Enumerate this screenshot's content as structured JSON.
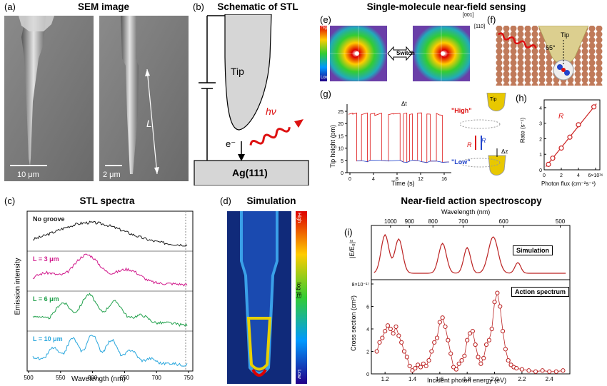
{
  "panels": {
    "a": {
      "letter": "(a)",
      "title": "SEM image",
      "scale1": "10 μm",
      "scale2": "2 μm",
      "length_label": "L"
    },
    "b": {
      "letter": "(b)",
      "title": "Schematic of STL",
      "tip": "Tip",
      "hv": "hν",
      "electron": "e⁻",
      "substrate": "Ag(111)"
    },
    "c": {
      "letter": "(c)",
      "title": "STL spectra",
      "ylabel": "Emission intensity",
      "xlabel": "Wavelength (nm)",
      "xticks": [
        "500",
        "550",
        "600",
        "650",
        "700",
        "750"
      ],
      "traces": [
        {
          "label": "No groove",
          "color": "#1a1a1a"
        },
        {
          "label": "L = 3 μm",
          "color": "#d11a8c"
        },
        {
          "label": "L = 6 μm",
          "color": "#1fa04a"
        },
        {
          "label": "L = 10 μm",
          "color": "#2aa7dd"
        }
      ]
    },
    "d": {
      "letter": "(d)",
      "title": "Simulation",
      "cb_high": "High",
      "cb_low": "Low",
      "cb_label": "log |E|"
    },
    "e": {
      "letter": "(e)",
      "title": "Single-molecule near-field sensing",
      "cb_high": "High",
      "cb_low": "Low",
      "switch": "Switch",
      "dir1": "[001]",
      "dir2": "[110]"
    },
    "f": {
      "letter": "(f)",
      "tip": "Tip",
      "angle": "65°"
    },
    "g": {
      "letter": "(g)",
      "ylabel": "Tip height (pm)",
      "xlabel": "Time (s)",
      "yticks": [
        "0",
        "5",
        "10",
        "15",
        "20",
        "25"
      ],
      "xticks": [
        "0",
        "4",
        "8",
        "12",
        "16"
      ],
      "dt": "Δt",
      "high": "\"High\"",
      "low": "\"Low\"",
      "tip": "Tip",
      "rate_hl": "R",
      "rate_lh": "R",
      "dz": "Δz"
    },
    "h": {
      "letter": "(h)",
      "ylabel": "Rate (s⁻¹)",
      "xlabel": "Photon flux (cm⁻²s⁻¹)",
      "yticks": [
        "0",
        "1",
        "2",
        "3",
        "4"
      ],
      "xticks": [
        "0",
        "2",
        "4",
        "6×10¹⁶"
      ],
      "series_label": "R"
    },
    "i": {
      "letter": "(i)",
      "title": "Near-field action spectroscopy",
      "top_xlabel": "Wavelength (nm)",
      "top_xticks": [
        "1000",
        "900",
        "800",
        "700",
        "600",
        "500"
      ],
      "sim_label": "Simulation",
      "act_label": "Action spectrum",
      "ylabel_top": "|E/E₀|²",
      "ylabel_bottom": "Cross section (cm²)",
      "yticks": [
        "0",
        "2",
        "4",
        "6",
        "8×10⁻¹⁷"
      ],
      "xlabel": "Incident photon energy (eV)",
      "xticks": [
        "1.2",
        "1.4",
        "1.6",
        "1.8",
        "2.0",
        "2.2",
        "2.4"
      ]
    }
  },
  "chart_data": [
    {
      "type": "line",
      "panel": "h",
      "title": "",
      "xlabel": "Photon flux (cm⁻²s⁻¹)",
      "ylabel": "Rate (s⁻¹)",
      "x": [
        0.5,
        1.0,
        2.0,
        3.0,
        4.0,
        5.8
      ],
      "values": [
        0.35,
        0.75,
        1.4,
        2.1,
        2.9,
        4.05
      ],
      "xlim": [
        0,
        6.5
      ],
      "ylim": [
        0,
        4.5
      ]
    },
    {
      "type": "line",
      "panel": "i-action",
      "title": "",
      "xlabel": "Incident photon energy (eV)",
      "ylabel": "Cross section (cm²)",
      "x": [
        1.14,
        1.16,
        1.18,
        1.2,
        1.22,
        1.24,
        1.26,
        1.28,
        1.3,
        1.32,
        1.34,
        1.36,
        1.38,
        1.4,
        1.42,
        1.44,
        1.46,
        1.48,
        1.5,
        1.52,
        1.54,
        1.56,
        1.58,
        1.6,
        1.62,
        1.64,
        1.66,
        1.68,
        1.7,
        1.72,
        1.74,
        1.76,
        1.78,
        1.8,
        1.82,
        1.84,
        1.86,
        1.88,
        1.9,
        1.92,
        1.94,
        1.96,
        1.98,
        2.0,
        2.02,
        2.04,
        2.06,
        2.08,
        2.1,
        2.12,
        2.14,
        2.16,
        2.2,
        2.25,
        2.3,
        2.35,
        2.4,
        2.45,
        2.5
      ],
      "values": [
        2.0,
        2.8,
        3.2,
        3.8,
        4.3,
        4.0,
        3.6,
        4.2,
        3.4,
        2.8,
        2.0,
        1.5,
        0.7,
        0.3,
        0.5,
        0.8,
        0.6,
        0.9,
        0.7,
        1.2,
        2.0,
        2.8,
        3.2,
        4.6,
        5.0,
        4.2,
        3.0,
        1.8,
        0.6,
        0.4,
        0.9,
        1.2,
        1.6,
        3.0,
        3.6,
        3.8,
        2.6,
        1.5,
        0.9,
        1.4,
        2.6,
        3.0,
        4.0,
        6.4,
        7.2,
        6.0,
        3.8,
        2.2,
        1.2,
        0.8,
        0.6,
        0.5,
        0.4,
        0.3,
        0.2,
        0.3,
        0.2,
        0.2,
        0.3
      ],
      "xlim": [
        1.1,
        2.55
      ],
      "ylim": [
        0,
        8
      ]
    }
  ]
}
